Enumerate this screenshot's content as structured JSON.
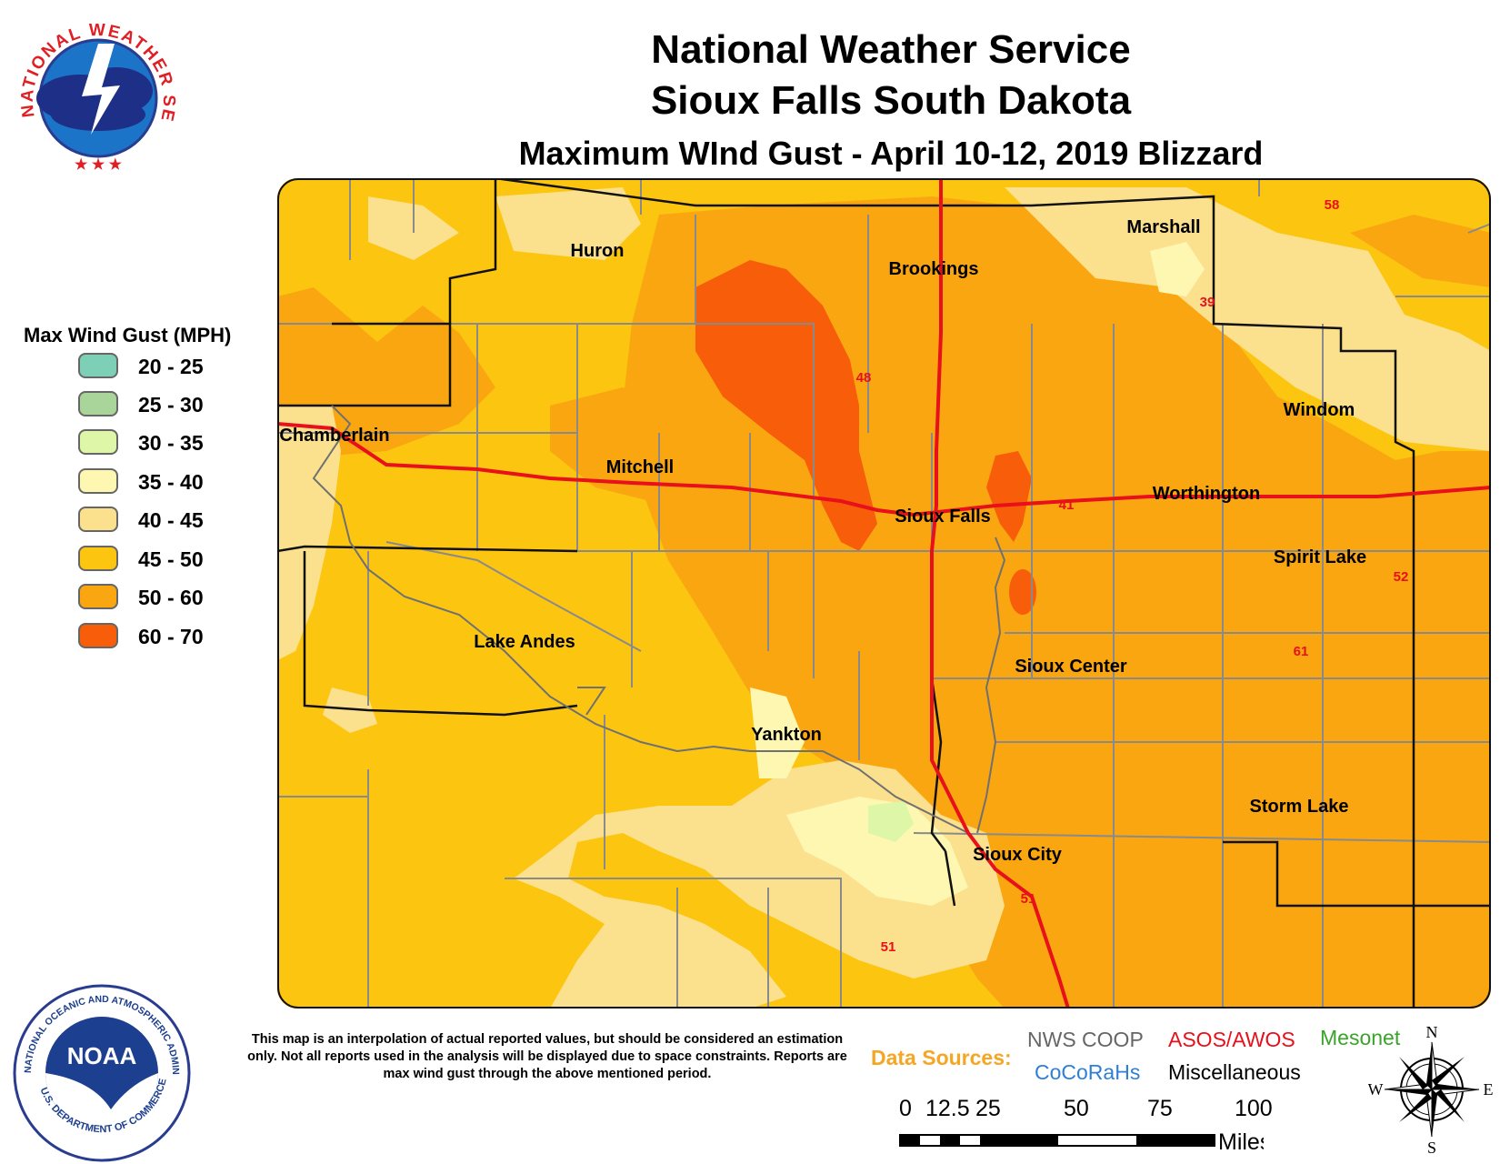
{
  "header": {
    "line1": "National Weather Service",
    "line2": "Sioux Falls South Dakota",
    "line3": "Maximum WInd Gust - April 10-12, 2019 Blizzard"
  },
  "legend": {
    "title": "Max Wind Gust (MPH)",
    "items": [
      {
        "label": "20 - 25",
        "color": "#7dcfb6"
      },
      {
        "label": "25 - 30",
        "color": "#a9d59a"
      },
      {
        "label": "30 - 35",
        "color": "#ddf6a8"
      },
      {
        "label": "35 - 40",
        "color": "#fdf7b2"
      },
      {
        "label": "40 - 45",
        "color": "#fbe18e"
      },
      {
        "label": "45 - 50",
        "color": "#fcc510"
      },
      {
        "label": "50 - 60",
        "color": "#f9a610"
      },
      {
        "label": "60 - 70",
        "color": "#f85d0a"
      }
    ]
  },
  "cities": [
    {
      "name": "Huron"
    },
    {
      "name": "Brookings"
    },
    {
      "name": "Marshall"
    },
    {
      "name": "Chamberlain"
    },
    {
      "name": "Mitchell"
    },
    {
      "name": "Sioux Falls"
    },
    {
      "name": "Worthington"
    },
    {
      "name": "Windom"
    },
    {
      "name": "Spirit Lake"
    },
    {
      "name": "Lake Andes"
    },
    {
      "name": "Sioux Center"
    },
    {
      "name": "Yankton"
    },
    {
      "name": "Storm Lake"
    },
    {
      "name": "Sioux City"
    }
  ],
  "highway_labels": [
    "58",
    "39",
    "48",
    "41",
    "52",
    "61",
    "51",
    "51"
  ],
  "disclaimer": "This map is an interpolation of actual reported values, but should be considered an estimation only. Not all reports used in the analysis will be displayed due to space constraints. Reports are max wind gust through the above mentioned period.",
  "data_sources": {
    "label": "Data Sources:",
    "items": [
      {
        "name": "NWS COOP",
        "color": "#666666"
      },
      {
        "name": "ASOS/AWOS",
        "color": "#e8101a"
      },
      {
        "name": "Mesonet",
        "color": "#3aa329"
      },
      {
        "name": "CoCoRaHs",
        "color": "#2f7fd6"
      },
      {
        "name": "Miscellaneous",
        "color": "#000000"
      }
    ]
  },
  "scale": {
    "ticks": [
      "0",
      "12.5",
      "25",
      "50",
      "75",
      "100"
    ],
    "unit": "Miles"
  },
  "compass": {
    "n": "N",
    "s": "S",
    "e": "E",
    "w": "W"
  },
  "logos": {
    "nws_text": "NATIONAL WEATHER SERVICE",
    "noaa_text": "NOAA",
    "noaa_ring": "NATIONAL OCEANIC AND ATMOSPHERIC ADMINISTRATION",
    "noaa_dept": "U.S. DEPARTMENT OF COMMERCE"
  }
}
